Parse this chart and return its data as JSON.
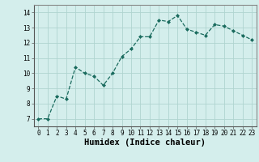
{
  "x": [
    0,
    1,
    2,
    3,
    4,
    5,
    6,
    7,
    8,
    9,
    10,
    11,
    12,
    13,
    14,
    15,
    16,
    17,
    18,
    19,
    20,
    21,
    22,
    23
  ],
  "y": [
    7.0,
    7.0,
    8.5,
    8.3,
    10.4,
    10.0,
    9.8,
    9.2,
    10.0,
    11.1,
    11.6,
    12.4,
    12.4,
    13.5,
    13.4,
    13.8,
    12.9,
    12.7,
    12.5,
    13.2,
    13.1,
    12.8,
    12.5,
    12.2
  ],
  "xlabel": "Humidex (Indice chaleur)",
  "xlim": [
    -0.5,
    23.5
  ],
  "ylim": [
    6.5,
    14.5
  ],
  "yticks": [
    7,
    8,
    9,
    10,
    11,
    12,
    13,
    14
  ],
  "xticks": [
    0,
    1,
    2,
    3,
    4,
    5,
    6,
    7,
    8,
    9,
    10,
    11,
    12,
    13,
    14,
    15,
    16,
    17,
    18,
    19,
    20,
    21,
    22,
    23
  ],
  "line_color": "#1a6b5e",
  "marker_color": "#1a6b5e",
  "bg_color": "#d4eeec",
  "grid_color": "#b0d4d0",
  "tick_fontsize": 5.5,
  "xlabel_fontsize": 7.5
}
